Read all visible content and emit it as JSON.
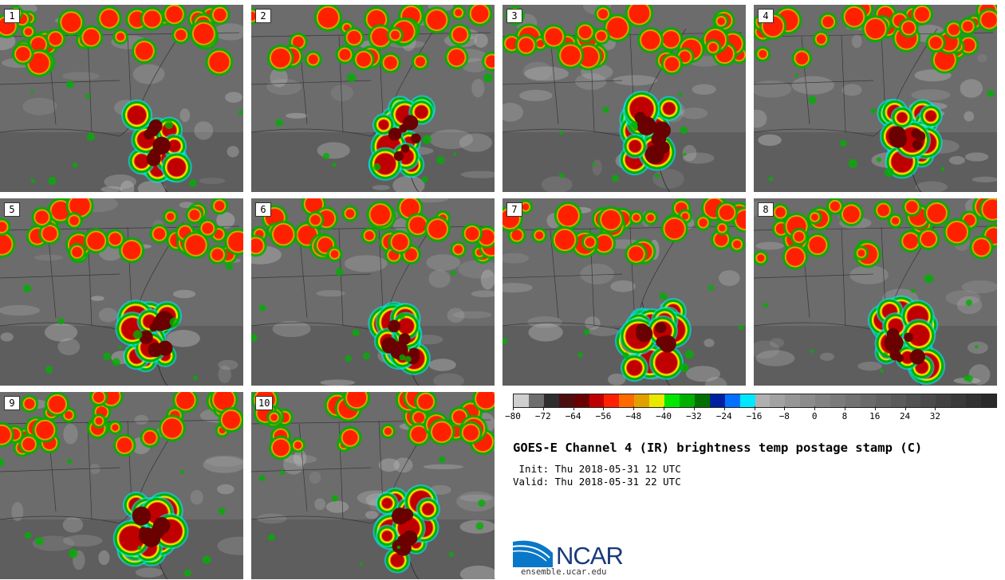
{
  "panels": [
    {
      "label": "1"
    },
    {
      "label": "2"
    },
    {
      "label": "3"
    },
    {
      "label": "4"
    },
    {
      "label": "5"
    },
    {
      "label": "6"
    },
    {
      "label": "7"
    },
    {
      "label": "8"
    },
    {
      "label": "9"
    },
    {
      "label": "10"
    }
  ],
  "colorbar": {
    "colors": [
      "#cfcfcf",
      "#6e6e6e",
      "#2e2e2e",
      "#4a1010",
      "#6b0000",
      "#c00000",
      "#ff2000",
      "#ff6a00",
      "#e0a000",
      "#e8e800",
      "#00e800",
      "#00b000",
      "#007000",
      "#0020a0",
      "#0070ff",
      "#00e8ff",
      "#b0b0b0",
      "#a2a2a2",
      "#969696",
      "#8c8c8c",
      "#828282",
      "#7a7a7a",
      "#727272",
      "#6a6a6a",
      "#626262",
      "#5a5a5a",
      "#525252",
      "#4a4a4a",
      "#424242",
      "#3a3a3a",
      "#323232",
      "#2a2a2a"
    ],
    "tick_labels": [
      "−80",
      "−72",
      "−64",
      "−56",
      "−48",
      "−40",
      "−32",
      "−24",
      "−16",
      "−8",
      "0",
      "8",
      "16",
      "24",
      "32"
    ],
    "min": -80,
    "max": 48,
    "step": 4
  },
  "title": "GOES-E Channel 4 (IR) brightness temp postage stamp (C)",
  "init": " Init: Thu 2018-05-31 12 UTC",
  "valid": "Valid: Thu 2018-05-31 22 UTC",
  "logo": {
    "text": "NCAR",
    "url": "ensemble.ucar.edu",
    "color": "#1a3a7a",
    "accent": "#0a78c8"
  }
}
